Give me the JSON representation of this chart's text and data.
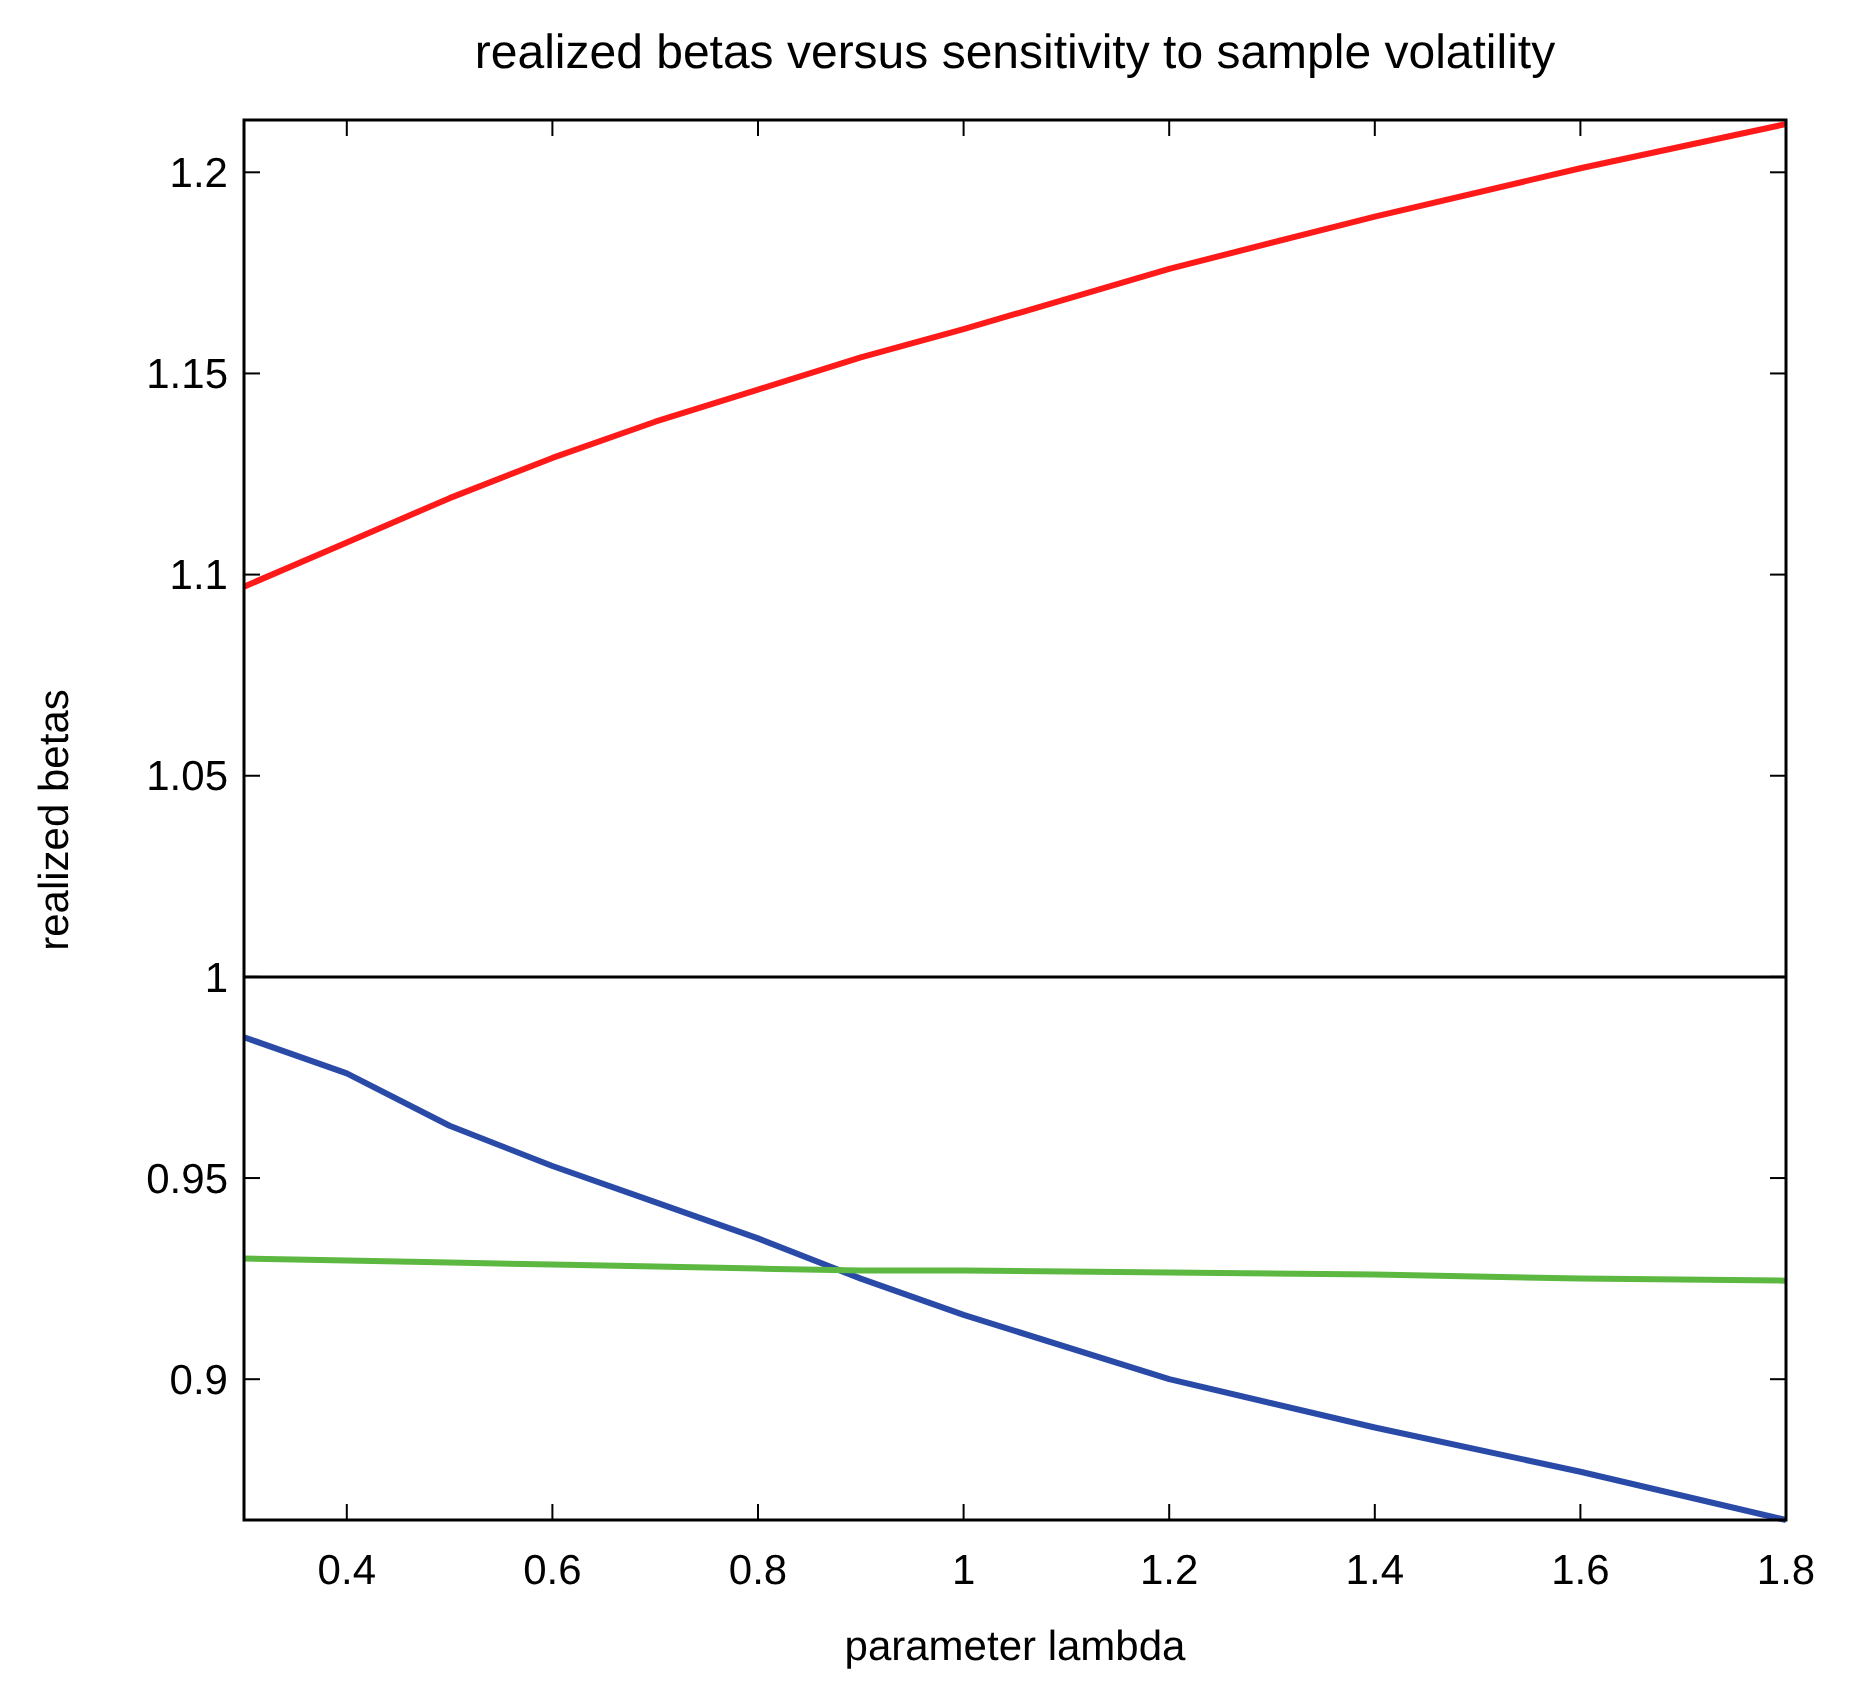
{
  "chart_data": {
    "type": "line",
    "title": "realized betas versus sensitivity to sample volatility",
    "xlabel": "parameter lambda",
    "ylabel": "realized betas",
    "x": [
      0.3,
      0.4,
      0.5,
      0.6,
      0.7,
      0.8,
      0.9,
      1.0,
      1.2,
      1.4,
      1.6,
      1.8
    ],
    "series": [
      {
        "color": "#ff1a1a",
        "values": [
          1.097,
          1.108,
          1.119,
          1.129,
          1.138,
          1.146,
          1.154,
          1.161,
          1.176,
          1.189,
          1.201,
          1.212
        ]
      },
      {
        "color": "#2a4aa8",
        "values": [
          0.985,
          0.976,
          0.963,
          0.953,
          0.944,
          0.935,
          0.925,
          0.916,
          0.9,
          0.888,
          0.877,
          0.865
        ]
      },
      {
        "color": "#5cb840",
        "values": [
          0.93,
          0.9295,
          0.929,
          0.9285,
          0.928,
          0.9275,
          0.927,
          0.927,
          0.9265,
          0.926,
          0.925,
          0.9245
        ]
      }
    ],
    "xlim": [
      0.3,
      1.8
    ],
    "xticks": [
      0.4,
      0.6,
      0.8,
      1,
      1.2,
      1.4,
      1.6,
      1.8
    ],
    "ylim": [
      0.865,
      1.213
    ],
    "yticks": [
      0.9,
      0.95,
      1,
      1.05,
      1.1,
      1.15,
      1.2
    ],
    "ref_lines": [
      {
        "axis": "y",
        "value": 1,
        "color": "#000000"
      }
    ],
    "grid": false,
    "line_style": "solid"
  }
}
